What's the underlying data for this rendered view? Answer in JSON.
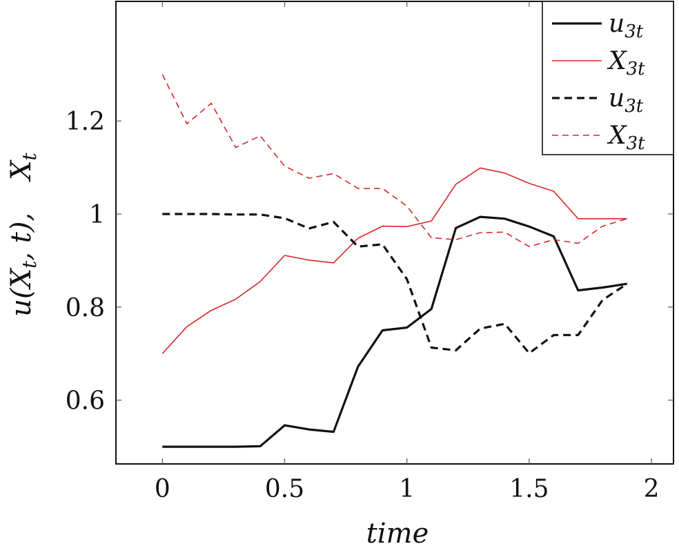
{
  "chart_data": {
    "type": "line",
    "title": "",
    "xlabel": "time",
    "ylabel_parts": [
      "u(X",
      "t",
      ", t), ",
      "X",
      "t"
    ],
    "xlim": [
      -0.19,
      2.09
    ],
    "ylim": [
      0.463,
      1.457
    ],
    "xticks": [
      0,
      0.5,
      1,
      1.5,
      2
    ],
    "xtick_labels": [
      "0",
      "0.5",
      "1",
      "1.5",
      "2"
    ],
    "yticks": [
      0.6,
      0.8,
      1.0,
      1.2
    ],
    "ytick_labels": [
      "0.6",
      "0.8",
      "1",
      "1.2"
    ],
    "grid": false,
    "legend_position": "top-right",
    "series": [
      {
        "name": "u3t",
        "legend_base": "u",
        "legend_sub": "3t",
        "color": "#111111",
        "style": "solid",
        "width": 3.2,
        "x": [
          0,
          0.1,
          0.2,
          0.3,
          0.4,
          0.5,
          0.6,
          0.7,
          0.8,
          0.9,
          1.0,
          1.1,
          1.2,
          1.3,
          1.4,
          1.5,
          1.6,
          1.7,
          1.8,
          1.9
        ],
        "y": [
          0.5,
          0.5,
          0.5,
          0.5,
          0.501,
          0.546,
          0.537,
          0.532,
          0.672,
          0.75,
          0.756,
          0.796,
          0.97,
          0.994,
          0.99,
          0.973,
          0.952,
          0.836,
          0.842,
          0.85
        ]
      },
      {
        "name": "X3t",
        "legend_base": "X",
        "legend_sub": "3t",
        "color": "#d62728",
        "style": "solid",
        "width": 1.6,
        "x": [
          0,
          0.1,
          0.2,
          0.3,
          0.4,
          0.5,
          0.6,
          0.7,
          0.8,
          0.9,
          1.0,
          1.1,
          1.2,
          1.3,
          1.4,
          1.5,
          1.6,
          1.7,
          1.8,
          1.9
        ],
        "y": [
          0.7,
          0.758,
          0.793,
          0.817,
          0.855,
          0.911,
          0.901,
          0.895,
          0.948,
          0.974,
          0.973,
          0.985,
          1.064,
          1.099,
          1.088,
          1.066,
          1.049,
          0.99,
          0.99,
          0.99
        ]
      },
      {
        "name": "u3t",
        "legend_base": "u",
        "legend_sub": "3t",
        "color": "#111111",
        "style": "dashed",
        "width": 3.2,
        "x": [
          0,
          0.1,
          0.2,
          0.3,
          0.4,
          0.5,
          0.6,
          0.7,
          0.8,
          0.9,
          1.0,
          1.1,
          1.2,
          1.3,
          1.4,
          1.5,
          1.6,
          1.7,
          1.8,
          1.9
        ],
        "y": [
          1.0,
          1.0,
          1.0,
          0.999,
          0.999,
          0.991,
          0.969,
          0.983,
          0.93,
          0.935,
          0.86,
          0.713,
          0.707,
          0.754,
          0.764,
          0.701,
          0.74,
          0.74,
          0.815,
          0.85
        ]
      },
      {
        "name": "X3t",
        "legend_base": "X",
        "legend_sub": "3t",
        "color": "#d62728",
        "style": "dashed",
        "width": 1.6,
        "x": [
          0,
          0.1,
          0.2,
          0.3,
          0.4,
          0.5,
          0.6,
          0.7,
          0.8,
          0.9,
          1.0,
          1.1,
          1.2,
          1.3,
          1.4,
          1.5,
          1.6,
          1.7,
          1.8,
          1.9
        ],
        "y": [
          1.3,
          1.194,
          1.238,
          1.143,
          1.168,
          1.103,
          1.077,
          1.087,
          1.055,
          1.055,
          1.017,
          0.949,
          0.945,
          0.96,
          0.961,
          0.93,
          0.945,
          0.937,
          0.974,
          0.99
        ]
      }
    ]
  }
}
